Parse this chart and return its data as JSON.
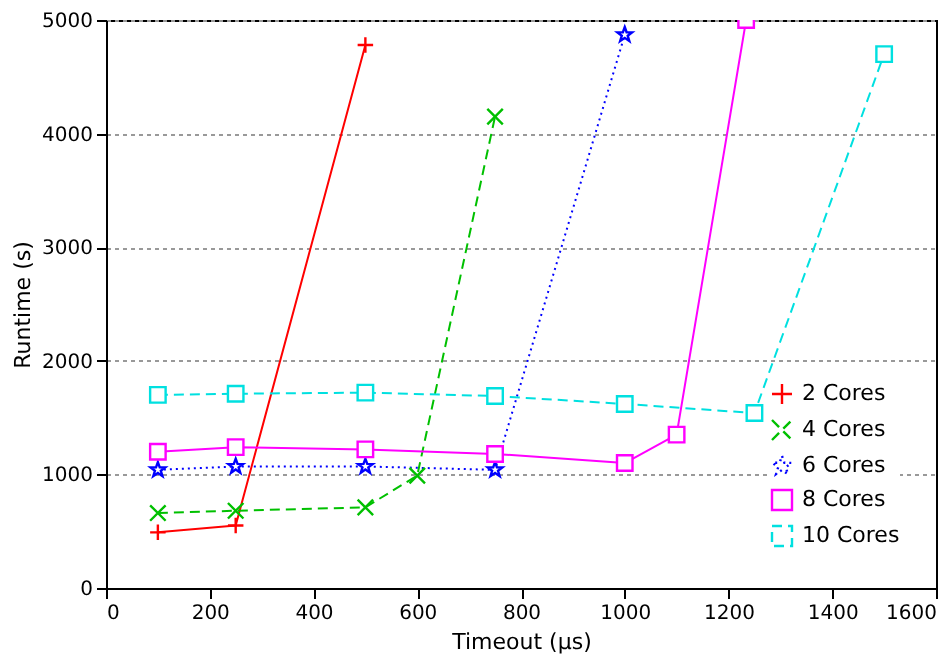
{
  "chart_data": {
    "type": "line",
    "xlabel": "Timeout (µs)",
    "ylabel": "Runtime (s)",
    "xlim": [
      0,
      1600
    ],
    "xticks": [
      0,
      200,
      400,
      600,
      800,
      1000,
      1200,
      1400,
      1600
    ],
    "ylim": [
      0,
      5000
    ],
    "yticks": [
      0,
      1000,
      2000,
      3000,
      4000,
      5000
    ],
    "grid": "y",
    "legend": "bottom right",
    "series": [
      {
        "name": "2 Cores",
        "color": "#ff0000",
        "marker": "cross",
        "line_style": "solid",
        "x": [
          100,
          250,
          500
        ],
        "values": [
          490,
          550,
          4780
        ]
      },
      {
        "name": "4 Cores",
        "color": "#00c000",
        "marker": "x",
        "line_style": "dashed",
        "x": [
          100,
          250,
          500,
          600,
          750
        ],
        "values": [
          660,
          680,
          710,
          990,
          4150
        ]
      },
      {
        "name": "6 Cores",
        "color": "#0000ff",
        "marker": "star",
        "line_style": "dotted",
        "x": [
          100,
          250,
          500,
          750,
          1000
        ],
        "values": [
          1040,
          1070,
          1070,
          1040,
          4870
        ]
      },
      {
        "name": "8 Cores",
        "color": "#ff00ff",
        "marker": "square",
        "line_style": "solid",
        "x": [
          100,
          250,
          500,
          750,
          1000,
          1100,
          1234
        ],
        "values": [
          1200,
          1240,
          1220,
          1180,
          1100,
          1350,
          5000
        ]
      },
      {
        "name": "10 Cores",
        "color": "#00e0e0",
        "marker": "square",
        "line_style": "dashed",
        "x": [
          100,
          250,
          500,
          750,
          1000,
          1250,
          1500
        ],
        "values": [
          1700,
          1710,
          1720,
          1690,
          1620,
          1540,
          4700
        ]
      }
    ]
  }
}
